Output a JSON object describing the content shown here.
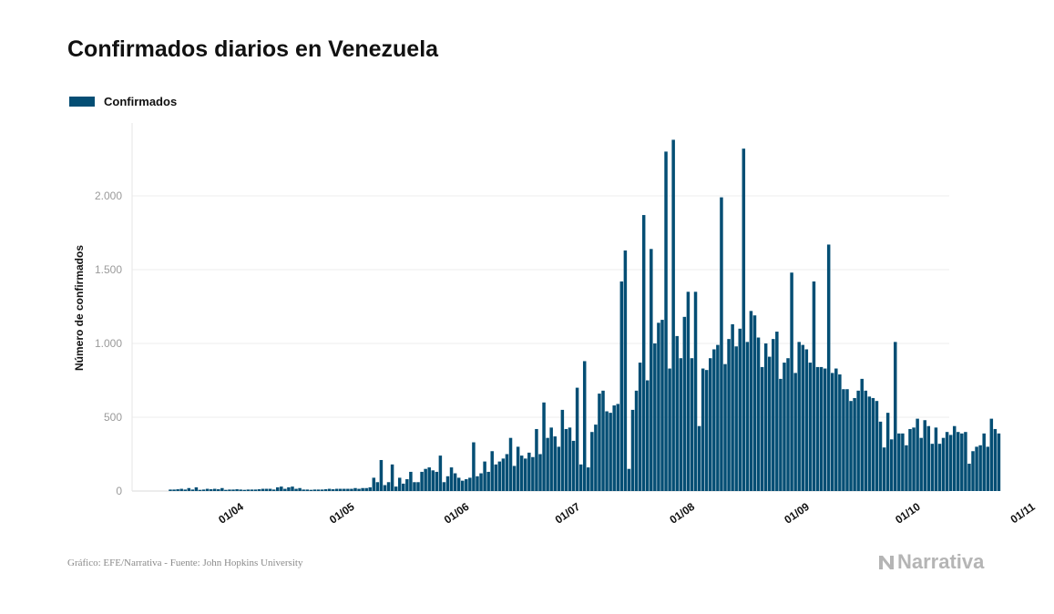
{
  "title": "Confirmados diarios en Venezuela",
  "legend": {
    "label": "Confirmados",
    "color": "#044e74"
  },
  "footer": "Gráfico: EFE/Narrativa - Fuente: John Hopkins University",
  "brand": "Narrativa",
  "chart_data": {
    "type": "bar",
    "title": "Confirmados diarios en Venezuela",
    "ylabel": "Número de confirmados",
    "xlabel": "",
    "ylim": [
      0,
      2500
    ],
    "grid": true,
    "legend_position": "top-left",
    "ytick_values": [
      0,
      500,
      1000,
      1500,
      2000
    ],
    "ytick_labels": [
      "0",
      "500",
      "1.000",
      "1.500",
      "2.000"
    ],
    "xtick_labels": [
      "01/04",
      "01/05",
      "01/06",
      "01/07",
      "01/08",
      "01/09",
      "01/10",
      "01/11"
    ],
    "xtick_dates": [
      "2020-04-01",
      "2020-05-01",
      "2020-06-01",
      "2020-07-01",
      "2020-08-01",
      "2020-09-01",
      "2020-10-01",
      "2020-11-01"
    ],
    "start_date": "2020-03-14",
    "series": [
      {
        "name": "Confirmados",
        "color": "#044e74",
        "values": [
          10,
          10,
          12,
          15,
          10,
          20,
          10,
          25,
          8,
          10,
          15,
          12,
          15,
          12,
          20,
          8,
          10,
          10,
          12,
          10,
          8,
          10,
          10,
          10,
          12,
          15,
          15,
          15,
          10,
          25,
          30,
          15,
          25,
          30,
          15,
          20,
          10,
          10,
          8,
          10,
          10,
          10,
          12,
          15,
          12,
          15,
          15,
          15,
          15,
          15,
          20,
          15,
          20,
          20,
          25,
          90,
          60,
          210,
          40,
          60,
          180,
          30,
          90,
          50,
          80,
          130,
          60,
          60,
          130,
          150,
          160,
          140,
          130,
          240,
          60,
          100,
          160,
          120,
          90,
          70,
          80,
          90,
          330,
          100,
          120,
          200,
          130,
          270,
          180,
          200,
          220,
          250,
          360,
          170,
          300,
          240,
          220,
          260,
          230,
          420,
          250,
          600,
          360,
          430,
          370,
          300,
          550,
          420,
          430,
          340,
          700,
          180,
          880,
          160,
          400,
          450,
          660,
          680,
          540,
          530,
          580,
          590,
          1420,
          1630,
          150,
          550,
          680,
          870,
          1870,
          750,
          1640,
          1000,
          1140,
          1160,
          2300,
          830,
          2380,
          1050,
          900,
          1180,
          1350,
          900,
          1350,
          440,
          830,
          820,
          900,
          960,
          990,
          1990,
          860,
          1030,
          1130,
          980,
          1100,
          2320,
          1010,
          1220,
          1190,
          1040,
          840,
          1000,
          910,
          1030,
          1080,
          760,
          870,
          900,
          1480,
          800,
          1010,
          990,
          960,
          870,
          1420,
          840,
          840,
          830,
          1670,
          800,
          830,
          790,
          690,
          690,
          610,
          630,
          680,
          760,
          680,
          640,
          630,
          610,
          470,
          295,
          530,
          350,
          1010,
          390,
          390,
          310,
          420,
          430,
          490,
          360,
          480,
          440,
          320,
          430,
          320,
          360,
          400,
          380,
          440,
          400,
          390,
          400,
          185,
          270,
          300,
          310,
          390,
          300,
          490,
          420,
          390
        ]
      }
    ]
  }
}
